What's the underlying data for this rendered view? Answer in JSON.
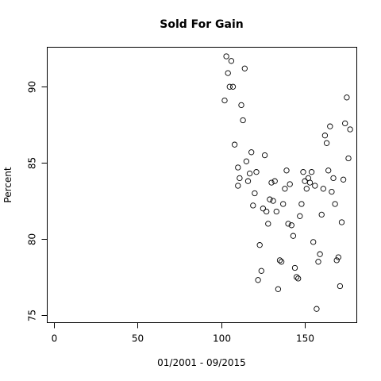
{
  "chart_data": {
    "type": "scatter",
    "title": "Sold For Gain",
    "xlabel": "01/2001 - 09/2015",
    "ylabel": "Percent",
    "xlim": [
      -4,
      181
    ],
    "ylim": [
      74.5,
      92.6
    ],
    "xticks": [
      0,
      50,
      100,
      150
    ],
    "yticks": [
      75,
      80,
      85,
      90
    ],
    "grid": false,
    "legend": "none",
    "points": [
      [
        102,
        89.1
      ],
      [
        103,
        92.0
      ],
      [
        104,
        90.9
      ],
      [
        105,
        90.0
      ],
      [
        106,
        91.7
      ],
      [
        107,
        90.0
      ],
      [
        108,
        86.2
      ],
      [
        110,
        83.5
      ],
      [
        110,
        84.7
      ],
      [
        111,
        84.0
      ],
      [
        112,
        88.8
      ],
      [
        113,
        87.8
      ],
      [
        114,
        91.2
      ],
      [
        115,
        85.1
      ],
      [
        116,
        83.8
      ],
      [
        117,
        84.3
      ],
      [
        118,
        85.7
      ],
      [
        119,
        82.2
      ],
      [
        120,
        83.0
      ],
      [
        121,
        84.4
      ],
      [
        122,
        77.3
      ],
      [
        123,
        79.6
      ],
      [
        124,
        77.9
      ],
      [
        125,
        82.0
      ],
      [
        126,
        85.5
      ],
      [
        127,
        81.8
      ],
      [
        128,
        81.0
      ],
      [
        129,
        82.6
      ],
      [
        130,
        83.7
      ],
      [
        131,
        82.5
      ],
      [
        132,
        83.8
      ],
      [
        133,
        81.8
      ],
      [
        134,
        76.7
      ],
      [
        135,
        78.6
      ],
      [
        136,
        78.5
      ],
      [
        137,
        82.3
      ],
      [
        138,
        83.3
      ],
      [
        139,
        84.5
      ],
      [
        140,
        81.0
      ],
      [
        141,
        83.6
      ],
      [
        142,
        80.9
      ],
      [
        143,
        80.2
      ],
      [
        144,
        78.1
      ],
      [
        145,
        77.5
      ],
      [
        146,
        77.4
      ],
      [
        147,
        81.5
      ],
      [
        148,
        82.3
      ],
      [
        149,
        84.4
      ],
      [
        150,
        83.8
      ],
      [
        151,
        83.3
      ],
      [
        152,
        84.0
      ],
      [
        153,
        83.7
      ],
      [
        154,
        84.4
      ],
      [
        155,
        79.8
      ],
      [
        156,
        83.5
      ],
      [
        157,
        75.4
      ],
      [
        158,
        78.5
      ],
      [
        159,
        79.0
      ],
      [
        160,
        81.6
      ],
      [
        161,
        83.3
      ],
      [
        162,
        86.8
      ],
      [
        163,
        86.3
      ],
      [
        164,
        84.5
      ],
      [
        165,
        87.4
      ],
      [
        166,
        83.1
      ],
      [
        167,
        84.0
      ],
      [
        168,
        82.3
      ],
      [
        169,
        78.6
      ],
      [
        170,
        78.8
      ],
      [
        171,
        76.9
      ],
      [
        172,
        81.1
      ],
      [
        173,
        83.9
      ],
      [
        174,
        87.6
      ],
      [
        175,
        89.3
      ],
      [
        176,
        85.3
      ],
      [
        177,
        87.2
      ]
    ]
  }
}
